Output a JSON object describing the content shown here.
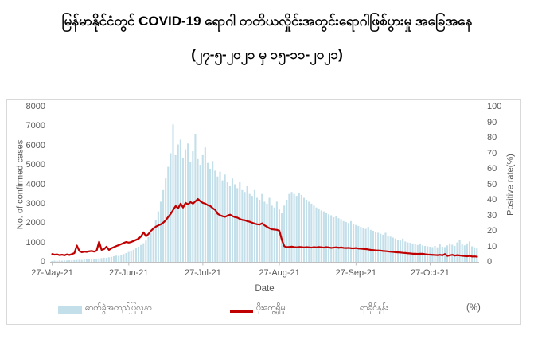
{
  "title": {
    "line1": "မြန်မာနိုင်ငံတွင်  COVID-19  ရောဂါ  တတိယလှိုင်းအတွင်းရောဂါဖြစ်ပွားမှု  အခြေအနေ",
    "line2": "(၂၇-၅-၂၀၂၁ မှ ၁၅-၁၁-၂၀၂၁)"
  },
  "legend": {
    "bar_label": "ဓာတ်ခွဲအတည်ပြုလူနာ",
    "line_label_1": "ပိုးတွေ့ရှိမှု",
    "line_label_2": "ရာခိုင်နှုန်း",
    "unit_label": "(%)"
  },
  "colors": {
    "bar": "#c3dfea",
    "line": "#c00000",
    "axis_text": "#595959",
    "axis_line": "#bfbfbf",
    "card_border": "#d9d9d9",
    "title_text": "#000000"
  },
  "chart_data": {
    "type": "bar",
    "subtype": "combo-bar-line-dual-axis",
    "title": "မြန်မာနိုင်ငံတွင် COVID-19 ရောဂါ တတိယလှိုင်းအတွင်းရောဂါဖြစ်ပွားမှု အခြေအနေ (၂၇-၅-၂၀၂၁ မှ ၁၅-၁၁-၂၀၂၁)",
    "grid": false,
    "legend_position": "bottom",
    "x": {
      "label": "Date",
      "unit": "day",
      "n_points": 173,
      "start_label": "27-May-21",
      "end_label": "15-Nov-21",
      "tick_day_offsets": [
        0,
        31,
        61,
        92,
        123,
        153
      ],
      "tick_labels": [
        "27-May-21",
        "27-Jun-21",
        "27-Jul-21",
        "27-Aug-21",
        "27-Sep-21",
        "27-Oct-21"
      ]
    },
    "y_left": {
      "label": "No. of confirmed cases",
      "min": 0,
      "max": 8000,
      "tick_step": 1000,
      "ticks": [
        0,
        1000,
        2000,
        3000,
        4000,
        5000,
        6000,
        7000,
        8000
      ]
    },
    "y_right": {
      "label": "Positive rate(%)",
      "min": 0,
      "max": 100,
      "tick_step": 10,
      "ticks": [
        0,
        10,
        20,
        30,
        40,
        50,
        60,
        70,
        80,
        90,
        100
      ]
    },
    "series": [
      {
        "name": "ဓာတ်ခွဲအတည်ပြုလူနာ",
        "type": "bar",
        "axis": "left",
        "values": [
          45,
          60,
          52,
          68,
          58,
          72,
          65,
          80,
          75,
          88,
          95,
          105,
          98,
          115,
          125,
          135,
          150,
          142,
          160,
          175,
          190,
          210,
          200,
          235,
          255,
          290,
          320,
          305,
          360,
          400,
          450,
          510,
          560,
          620,
          700,
          780,
          870,
          960,
          1100,
          1280,
          1500,
          1800,
          2150,
          2600,
          3100,
          3700,
          4300,
          4900,
          5600,
          7083,
          5500,
          6050,
          6300,
          5350,
          5800,
          6100,
          5150,
          5700,
          6600,
          5300,
          5000,
          5500,
          5900,
          5100,
          4800,
          5200,
          4700,
          4400,
          4650,
          4200,
          4500,
          4100,
          3900,
          4300,
          4000,
          3800,
          4100,
          3700,
          3600,
          3900,
          3500,
          3400,
          3700,
          3300,
          3200,
          3500,
          3100,
          3000,
          3300,
          2900,
          2800,
          3100,
          2700,
          2500,
          2900,
          3200,
          3500,
          3600,
          3500,
          3400,
          3550,
          3450,
          3300,
          3200,
          3100,
          3000,
          2900,
          2800,
          2750,
          2650,
          2600,
          2500,
          2450,
          2400,
          2300,
          2350,
          2250,
          2200,
          2100,
          2050,
          2000,
          2100,
          1950,
          1900,
          1850,
          1800,
          1750,
          1700,
          1800,
          1650,
          1600,
          1550,
          1500,
          1450,
          1400,
          1500,
          1350,
          1300,
          1250,
          1200,
          1150,
          1100,
          1200,
          1050,
          1000,
          980,
          950,
          900,
          870,
          950,
          850,
          820,
          800,
          780,
          760,
          820,
          750,
          900,
          780,
          760,
          850,
          950,
          880,
          820,
          1000,
          1110,
          900,
          850,
          950,
          1050,
          800,
          750,
          700
        ]
      },
      {
        "name": "ပိုးတွေ့ရှိမှု ရာခိုင်နှုန်း (%)",
        "type": "line",
        "axis": "right",
        "values": [
          5.0,
          4.6,
          4.8,
          4.3,
          4.6,
          4.2,
          4.8,
          4.4,
          5.0,
          5.6,
          10.5,
          7.0,
          6.2,
          6.6,
          6.4,
          6.8,
          7.0,
          6.6,
          7.2,
          13.0,
          7.7,
          8.2,
          9.8,
          7.7,
          8.8,
          9.5,
          10.2,
          10.8,
          11.5,
          12.2,
          12.8,
          12.4,
          12.8,
          13.5,
          14.2,
          14.9,
          16.5,
          19.0,
          16.5,
          18.0,
          20.0,
          21.5,
          22.7,
          23.5,
          24.2,
          25.3,
          26.8,
          29.0,
          31.0,
          33.5,
          36.0,
          34.5,
          37.5,
          35.0,
          38.0,
          37.0,
          38.5,
          37.5,
          39.0,
          40.5,
          39.0,
          38.0,
          37.5,
          36.5,
          36.0,
          34.5,
          33.5,
          31.0,
          30.0,
          29.4,
          29.0,
          29.8,
          30.4,
          29.5,
          28.8,
          28.5,
          27.6,
          27.0,
          26.8,
          26.2,
          25.8,
          25.2,
          24.6,
          24.2,
          24.0,
          24.8,
          23.5,
          22.5,
          21.6,
          21.0,
          20.8,
          20.6,
          20.0,
          14.0,
          10.0,
          9.5,
          9.6,
          9.8,
          9.5,
          9.4,
          9.6,
          9.5,
          9.3,
          9.5,
          9.4,
          9.2,
          9.5,
          9.3,
          9.6,
          9.4,
          9.2,
          9.5,
          9.3,
          9.0,
          9.2,
          9.4,
          9.1,
          9.3,
          9.0,
          8.9,
          9.0,
          8.8,
          8.7,
          8.9,
          8.6,
          8.5,
          8.3,
          8.2,
          8.0,
          7.7,
          7.6,
          7.4,
          7.3,
          7.2,
          7.0,
          6.9,
          6.7,
          6.5,
          6.4,
          6.2,
          6.1,
          6.0,
          5.8,
          5.7,
          5.5,
          5.4,
          5.2,
          5.2,
          5.1,
          5.2,
          5.2,
          4.9,
          4.7,
          4.6,
          4.5,
          4.4,
          4.3,
          4.5,
          4.2,
          5.0,
          3.8,
          4.2,
          4.5,
          4.0,
          4.3,
          4.1,
          3.9,
          3.7,
          3.6,
          3.8,
          3.4,
          3.5,
          3.3
        ]
      }
    ]
  }
}
